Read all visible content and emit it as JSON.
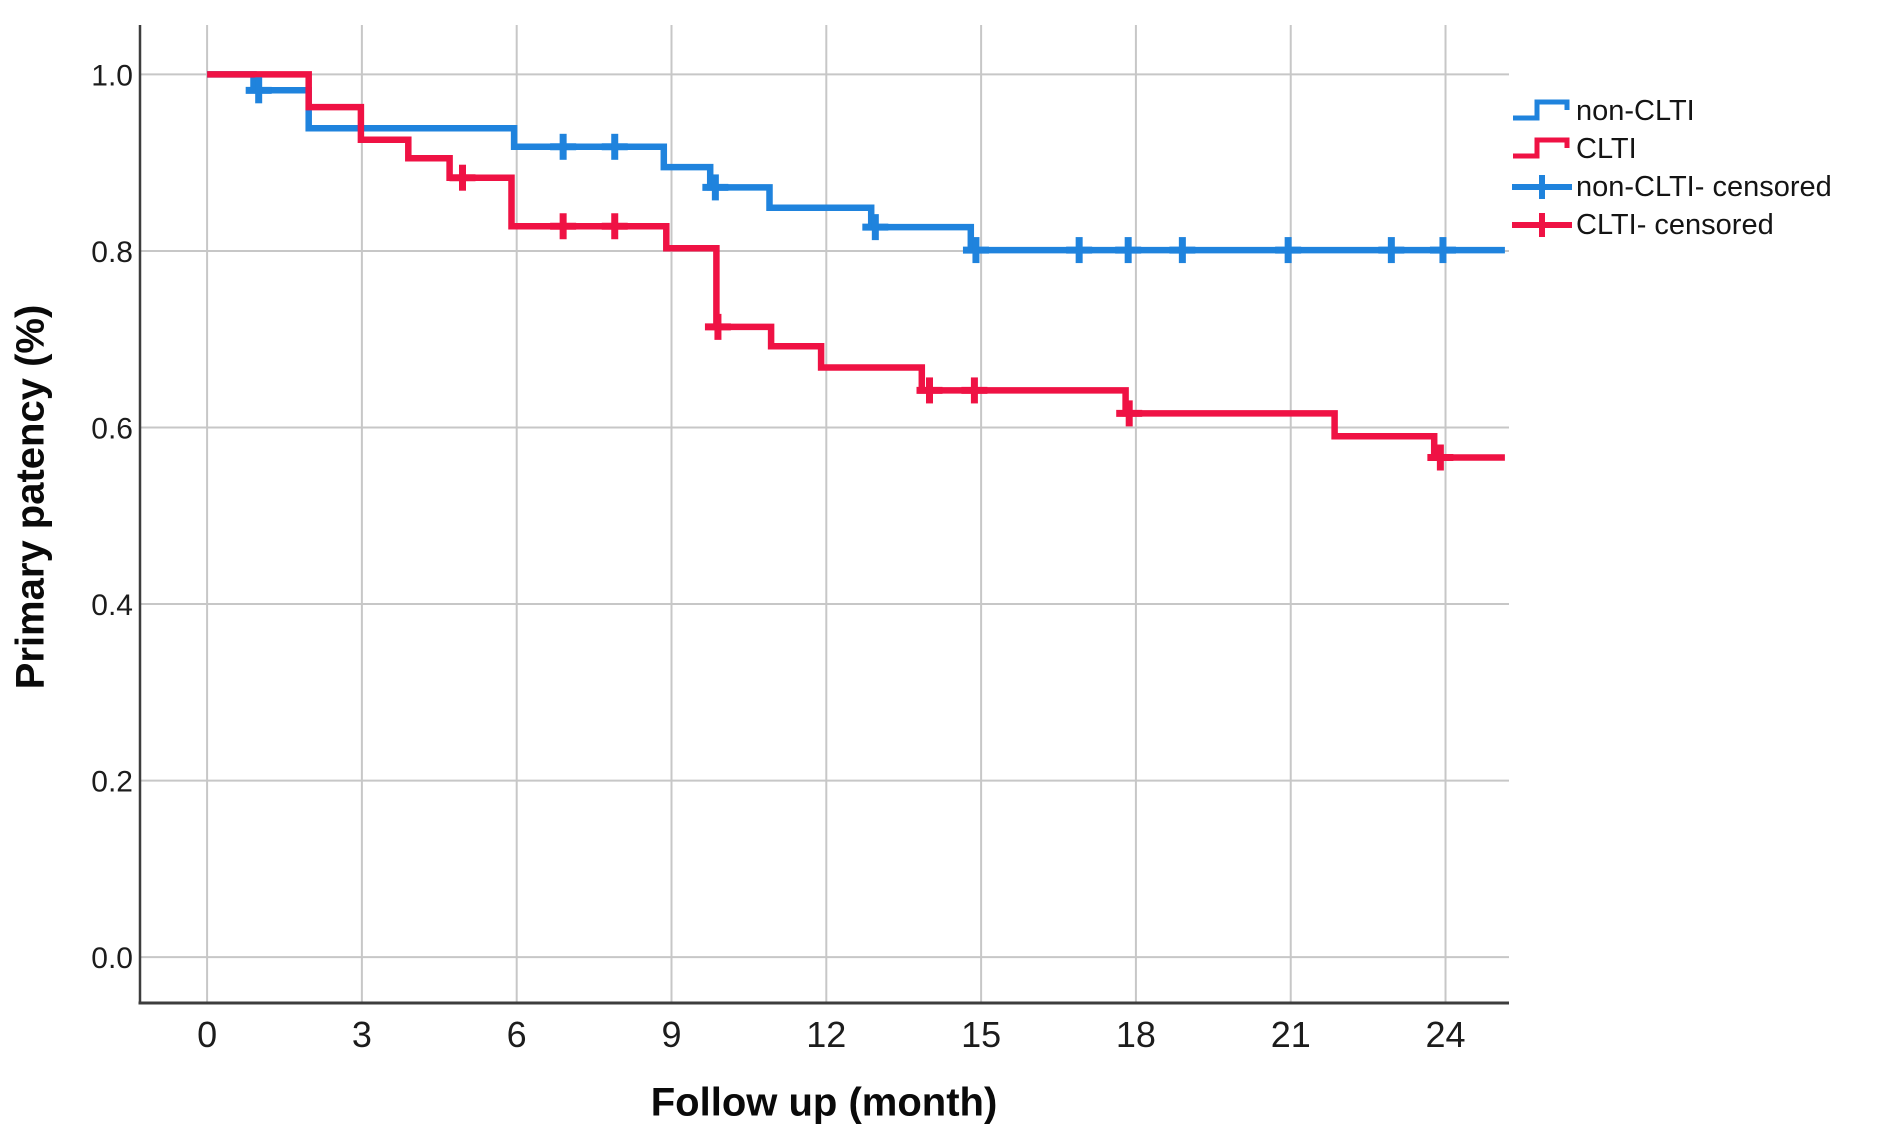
{
  "chart_data": {
    "type": "line",
    "variant": "kaplan_meier_step",
    "title": "",
    "xlabel": "Follow up (month)",
    "ylabel": "Primary patency (%)",
    "xlim": [
      -1.3,
      25.23
    ],
    "ylim": [
      -0.052,
      1.056
    ],
    "xticks": [
      0,
      3,
      6,
      9,
      12,
      15,
      18,
      21,
      24
    ],
    "yticks": [
      1.0,
      0.8,
      0.6,
      0.4,
      0.2,
      0.0
    ],
    "ytick_labels": [
      "1.0",
      "0.8",
      "0.6",
      "0.4",
      "0.2",
      "0.0"
    ],
    "grid": true,
    "legend_position": "top-right",
    "style": {
      "grid_color": "#c7c7c7",
      "axis_color": "#3d3d3d",
      "tick_text_color": "#1c1c1c",
      "title_text_color": "#0a0a0a"
    },
    "series": [
      {
        "id": "non-clti",
        "name": "non-CLTI",
        "color": "#1f83dd",
        "steps": [
          [
            0,
            1.0
          ],
          [
            0.9,
            0.982
          ],
          [
            1.97,
            0.939
          ],
          [
            5.95,
            0.918
          ],
          [
            8.85,
            0.895
          ],
          [
            9.75,
            0.872
          ],
          [
            10.9,
            0.849
          ],
          [
            12.87,
            0.827
          ],
          [
            14.8,
            0.801
          ],
          [
            25.15,
            0.801
          ]
        ],
        "censored": [
          [
            1.0,
            0.982
          ],
          [
            6.9,
            0.918
          ],
          [
            7.9,
            0.918
          ],
          [
            9.85,
            0.872
          ],
          [
            12.95,
            0.827
          ],
          [
            14.9,
            0.801
          ],
          [
            16.9,
            0.801
          ],
          [
            17.85,
            0.801
          ],
          [
            18.9,
            0.801
          ],
          [
            20.95,
            0.801
          ],
          [
            22.95,
            0.801
          ],
          [
            23.95,
            0.801
          ]
        ]
      },
      {
        "id": "clti",
        "name": "CLTI",
        "color": "#ef1244",
        "steps": [
          [
            0,
            1.0
          ],
          [
            1.97,
            0.963
          ],
          [
            2.98,
            0.926
          ],
          [
            3.9,
            0.905
          ],
          [
            4.7,
            0.883
          ],
          [
            5.9,
            0.828
          ],
          [
            8.9,
            0.803
          ],
          [
            9.87,
            0.714
          ],
          [
            10.93,
            0.692
          ],
          [
            11.9,
            0.668
          ],
          [
            13.85,
            0.642
          ],
          [
            17.8,
            0.616
          ],
          [
            21.85,
            0.59
          ],
          [
            23.78,
            0.566
          ],
          [
            25.15,
            0.566
          ]
        ],
        "censored": [
          [
            4.95,
            0.883
          ],
          [
            6.9,
            0.828
          ],
          [
            7.9,
            0.828
          ],
          [
            9.9,
            0.714
          ],
          [
            14.0,
            0.642
          ],
          [
            14.87,
            0.642
          ],
          [
            17.87,
            0.616
          ],
          [
            23.9,
            0.566
          ]
        ]
      }
    ],
    "legend": [
      {
        "label": "non-CLTI",
        "glyph": "step",
        "series_index": 0
      },
      {
        "label": "CLTI",
        "glyph": "step",
        "series_index": 1
      },
      {
        "label": "non-CLTI- censored",
        "glyph": "plus",
        "series_index": 0
      },
      {
        "label": "CLTI- censored",
        "glyph": "plus",
        "series_index": 1
      }
    ]
  }
}
